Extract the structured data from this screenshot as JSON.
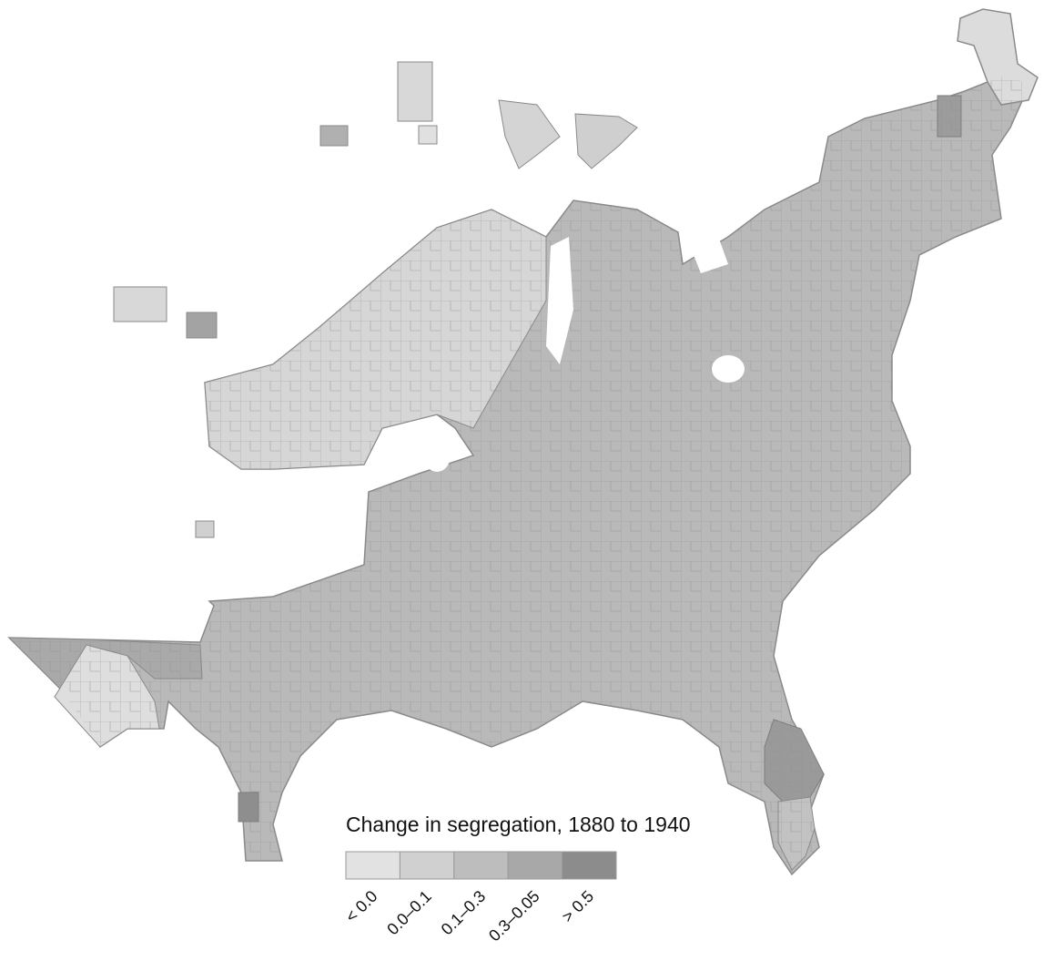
{
  "legend": {
    "title": "Change in segregation, 1880 to 1940",
    "items": [
      {
        "label": "< 0.0",
        "color": "#e2e2e2"
      },
      {
        "label": "0.0–0.1",
        "color": "#d0d0d0"
      },
      {
        "label": "0.1–0.3",
        "color": "#bdbdbd"
      },
      {
        "label": "0.3–0.05",
        "color": "#a8a8a8"
      },
      {
        "label": "> 0.5",
        "color": "#8c8c8c"
      }
    ]
  }
}
